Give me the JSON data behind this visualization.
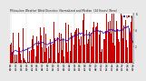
{
  "title": "Milwaukee Weather Wind Direction  Normalized and Median  (24 Hours) (New)",
  "n_points": 300,
  "seed": 42,
  "bar_color": "#cc0000",
  "median_color": "#0000cc",
  "background_color": "#e8e8e8",
  "plot_bg": "#ffffff",
  "ylim": [
    0,
    6
  ],
  "yticks": [
    2,
    4,
    6
  ],
  "legend_blue_color": "#0000cc",
  "legend_red_color": "#cc0000",
  "title_fontsize": 2.2,
  "tick_fontsize": 2.0,
  "grid_color": "#bbbbbb",
  "n_xticks": 24
}
